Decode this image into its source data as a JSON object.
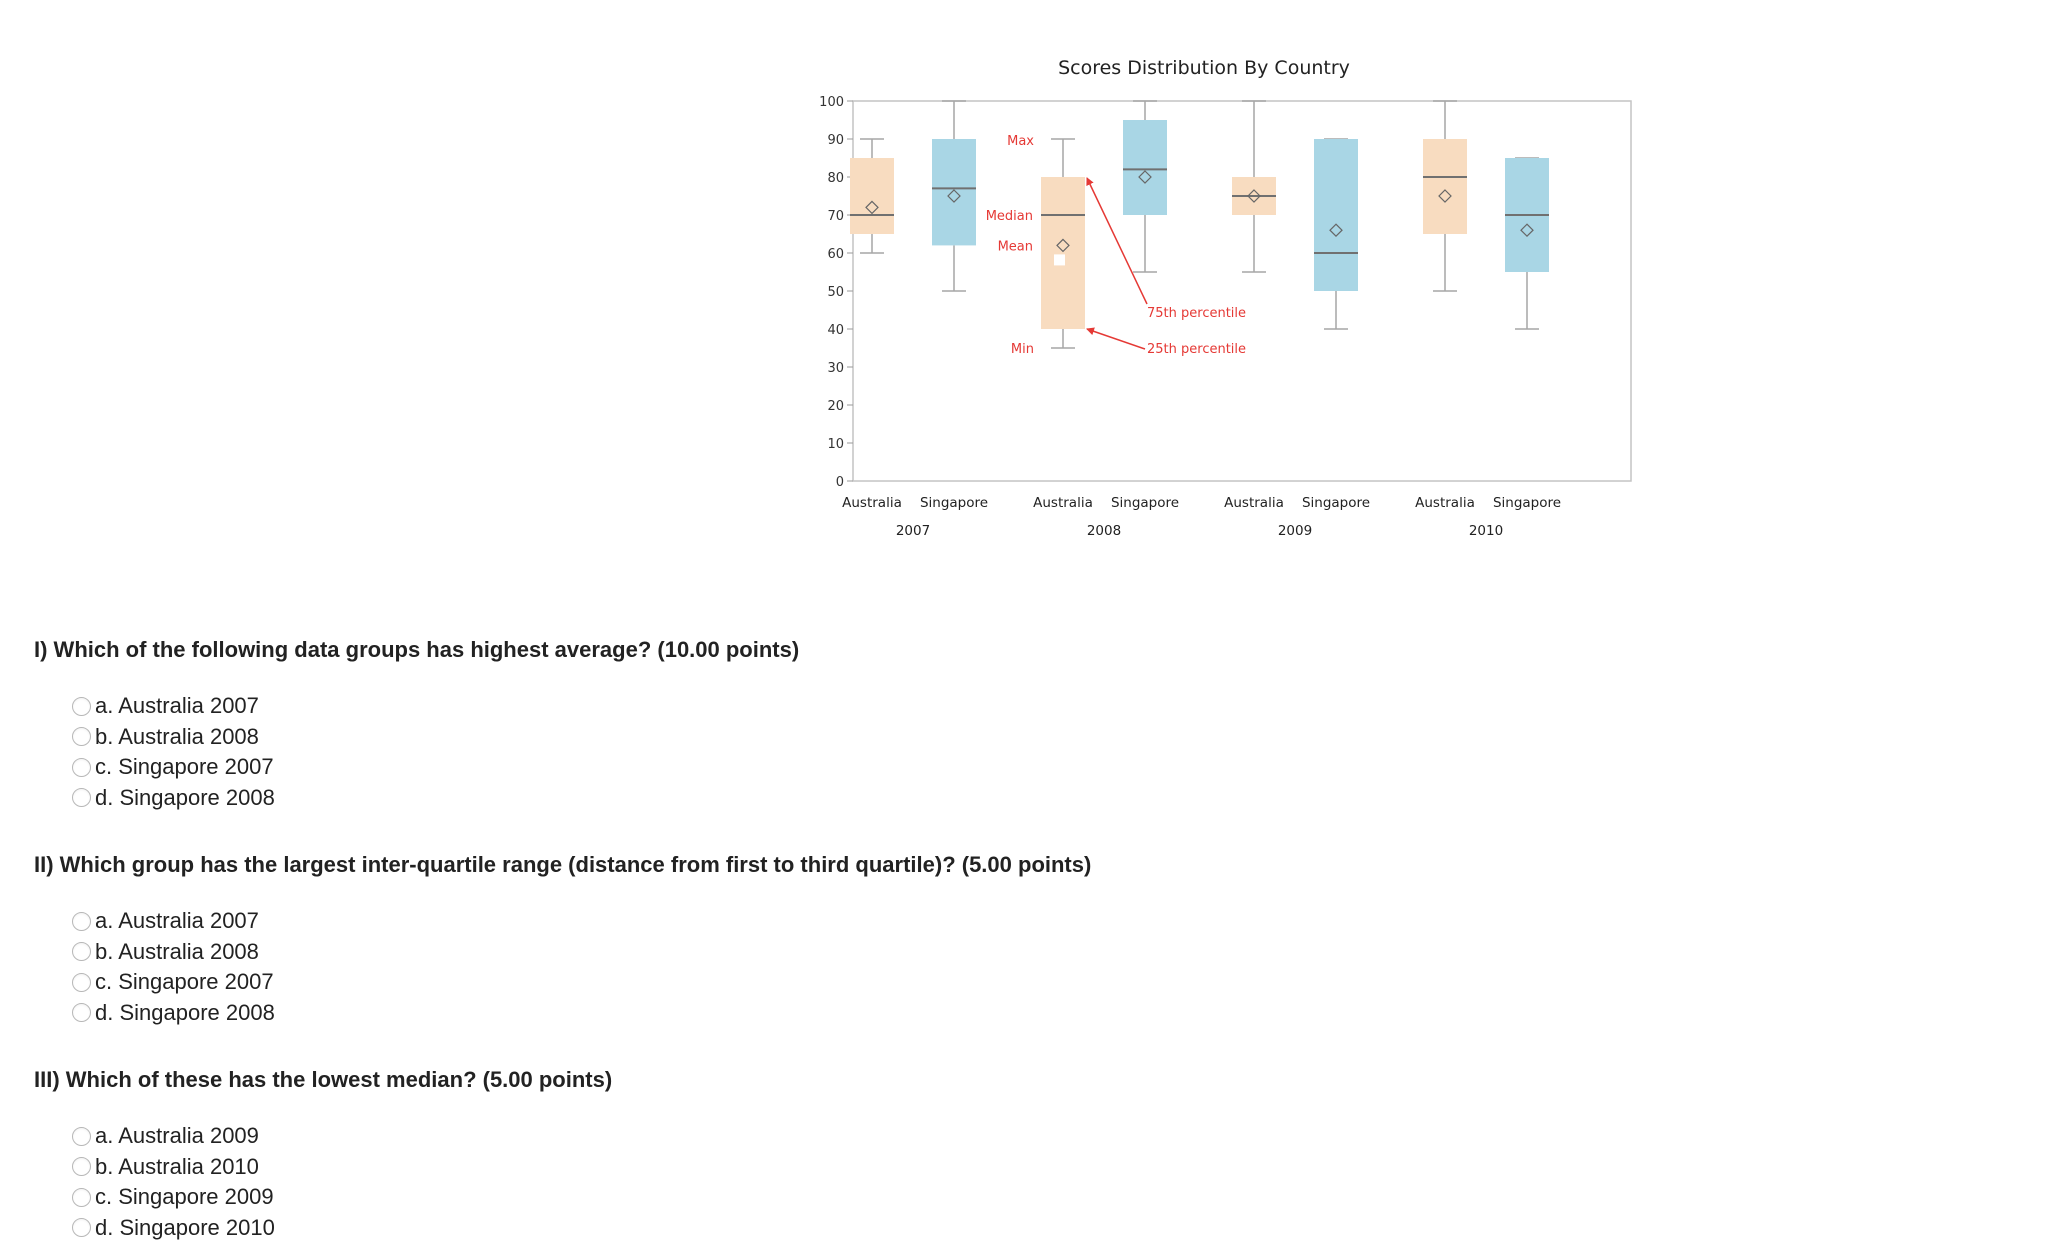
{
  "colors": {
    "australia": "#f8dcc0",
    "singapore": "#a9d6e5",
    "annotation": "#e53935",
    "whisker": "#a6a6a6",
    "median": "#707070"
  },
  "chart_data": {
    "type": "boxplot",
    "title": "Scores Distribution By Country",
    "ylim": [
      0,
      100
    ],
    "yticks": [
      0,
      10,
      20,
      30,
      40,
      50,
      60,
      70,
      80,
      90,
      100
    ],
    "groups": [
      "2007",
      "2008",
      "2009",
      "2010"
    ],
    "boxes": [
      {
        "country": "Australia",
        "group": "2007",
        "min": 60,
        "q1": 65,
        "median": 70,
        "q3": 85,
        "max": 90,
        "mean": 72
      },
      {
        "country": "Singapore",
        "group": "2007",
        "min": 50,
        "q1": 62,
        "median": 77,
        "q3": 90,
        "max": 100,
        "mean": 75
      },
      {
        "country": "Australia",
        "group": "2008",
        "min": 35,
        "q1": 40,
        "median": 70,
        "q3": 80,
        "max": 90,
        "mean": 62
      },
      {
        "country": "Singapore",
        "group": "2008",
        "min": 55,
        "q1": 70,
        "median": 82,
        "q3": 95,
        "max": 100,
        "mean": 80
      },
      {
        "country": "Australia",
        "group": "2009",
        "min": 55,
        "q1": 70,
        "median": 75,
        "q3": 80,
        "max": 100,
        "mean": 75
      },
      {
        "country": "Singapore",
        "group": "2009",
        "min": 40,
        "q1": 50,
        "median": 60,
        "q3": 90,
        "max": 90,
        "mean": 66
      },
      {
        "country": "Australia",
        "group": "2010",
        "min": 50,
        "q1": 65,
        "median": 80,
        "q3": 90,
        "max": 100,
        "mean": 75
      },
      {
        "country": "Singapore",
        "group": "2010",
        "min": 40,
        "q1": 55,
        "median": 70,
        "q3": 85,
        "max": 85,
        "mean": 66
      }
    ],
    "annotations": {
      "max": "Max",
      "median": "Median",
      "mean": "Mean",
      "min": "Min",
      "p75": "75th percentile",
      "p25": "25th percentile"
    }
  },
  "questions": [
    {
      "title": "I) Which of the following data groups has highest average? (10.00 points)",
      "options": [
        "a. Australia 2007",
        "b. Australia 2008",
        "c. Singapore 2007",
        "d. Singapore 2008"
      ]
    },
    {
      "title": "II) Which group has the largest inter-quartile range (distance from first to third quartile)? (5.00 points)",
      "options": [
        "a. Australia 2007",
        "b. Australia 2008",
        "c. Singapore 2007",
        "d. Singapore 2008"
      ]
    },
    {
      "title": "III) Which of these has the lowest median? (5.00 points)",
      "options": [
        "a. Australia 2009",
        "b. Australia 2010",
        "c. Singapore 2009",
        "d. Singapore 2010"
      ]
    }
  ]
}
